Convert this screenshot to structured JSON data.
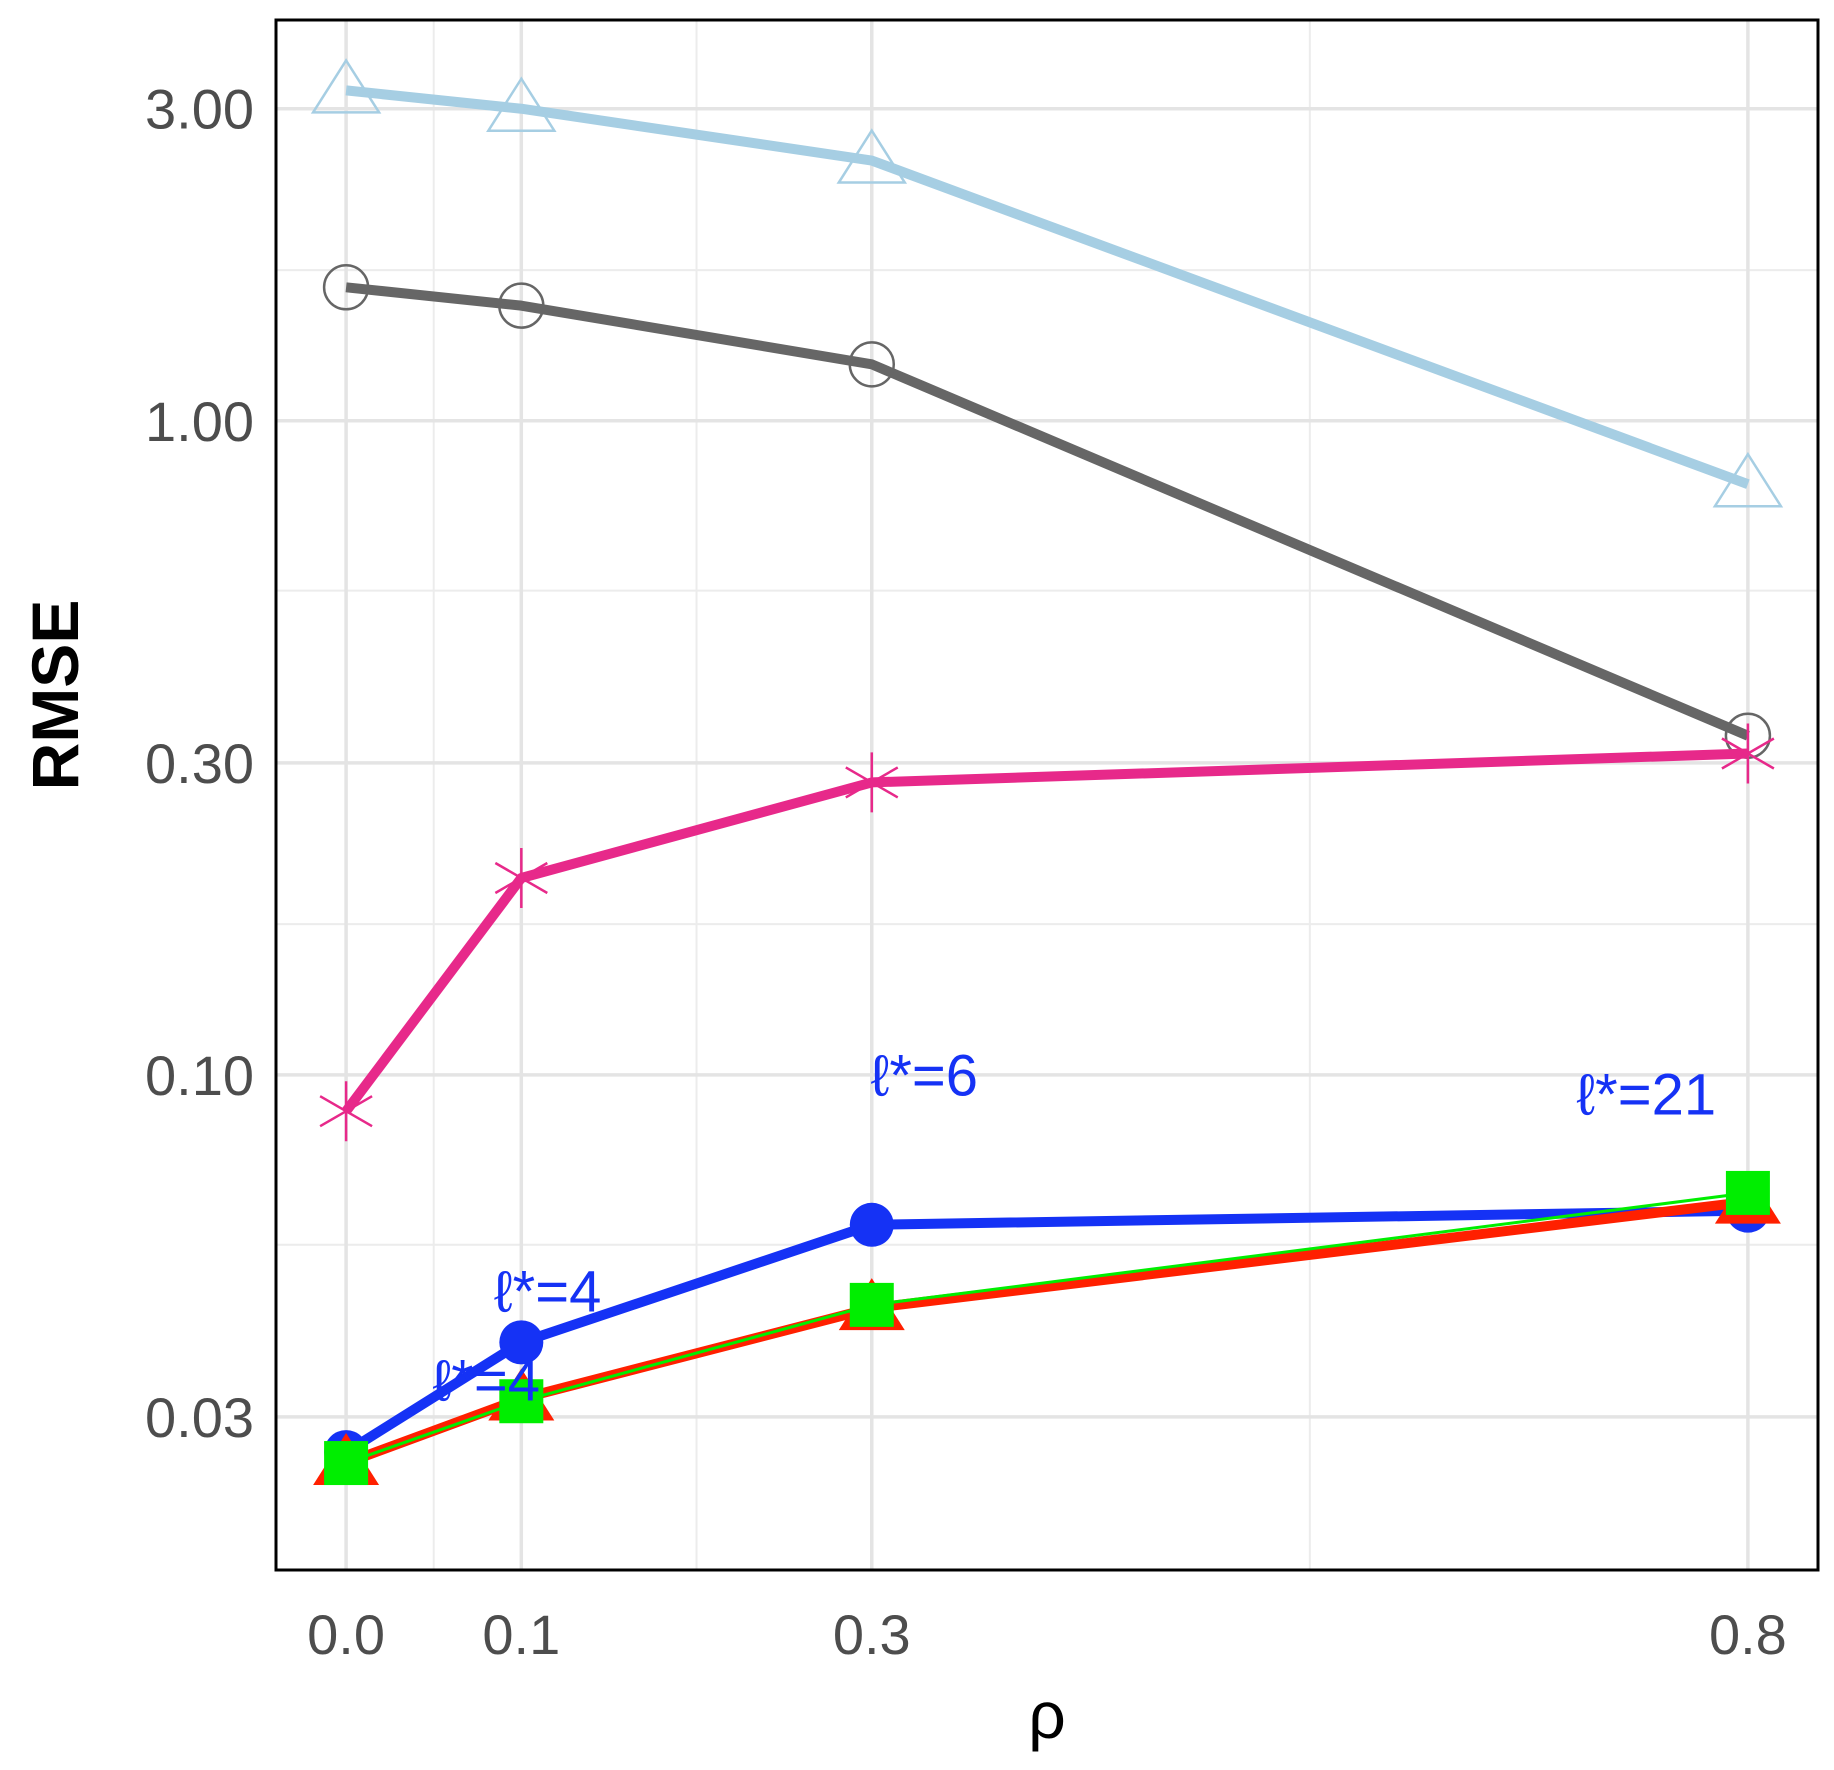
{
  "chart_data": {
    "type": "line",
    "title": "",
    "xlabel": "ρ",
    "ylabel": "RMSE",
    "x": [
      0.0,
      0.1,
      0.3,
      0.8
    ],
    "xticks": [
      0.0,
      0.1,
      0.3,
      0.8
    ],
    "xtick_labels": [
      "0.0",
      "0.1",
      "0.3",
      "0.8"
    ],
    "xminor": [
      0.05,
      0.2,
      0.55
    ],
    "xlim": [
      -0.04,
      0.84
    ],
    "yscale": "log",
    "yticks": [
      0.03,
      0.1,
      0.3,
      1.0,
      3.0
    ],
    "ytick_labels": [
      "0.03",
      "0.10",
      "0.30",
      "1.00",
      "3.00"
    ],
    "yminor": [
      0.055,
      0.17,
      0.55,
      1.7
    ],
    "ylim": [
      0.0175,
      4.1
    ],
    "grid": true,
    "series": [
      {
        "name": "light blue triangles",
        "color": "#a6cee3",
        "marker": "triangle-open",
        "lineWidth": 10,
        "values": [
          3.2,
          3.0,
          2.5,
          0.8
        ]
      },
      {
        "name": "gray circles",
        "color": "#666666",
        "marker": "circle-open",
        "lineWidth": 10,
        "values": [
          1.6,
          1.5,
          1.22,
          0.33
        ]
      },
      {
        "name": "magenta asterisks",
        "color": "#e7298a",
        "marker": "asterisk",
        "lineWidth": 10,
        "values": [
          0.088,
          0.2,
          0.28,
          0.31
        ]
      },
      {
        "name": "blue circles",
        "color": "#1532f5",
        "marker": "circle-filled",
        "lineWidth": 10,
        "values": [
          0.0265,
          0.039,
          0.059,
          0.062
        ]
      },
      {
        "name": "red triangles",
        "color": "#ff2000",
        "marker": "triangle-filled",
        "lineWidth": 10,
        "values": [
          0.0255,
          0.032,
          0.044,
          0.064
        ]
      },
      {
        "name": "green squares",
        "color": "#00ee00",
        "marker": "square-filled",
        "lineWidth": 3,
        "values": [
          0.0255,
          0.0317,
          0.0445,
          0.066
        ]
      }
    ],
    "annotations": [
      {
        "text": "ℓ*=4",
        "x": 0.08,
        "y": 0.0318
      },
      {
        "text": "ℓ*=4",
        "x": 0.115,
        "y": 0.0435
      },
      {
        "text": "ℓ*=6",
        "x": 0.33,
        "y": 0.093
      },
      {
        "text": "ℓ*=21",
        "x": 0.742,
        "y": 0.087
      }
    ],
    "annotation_color": "#1532f5"
  }
}
